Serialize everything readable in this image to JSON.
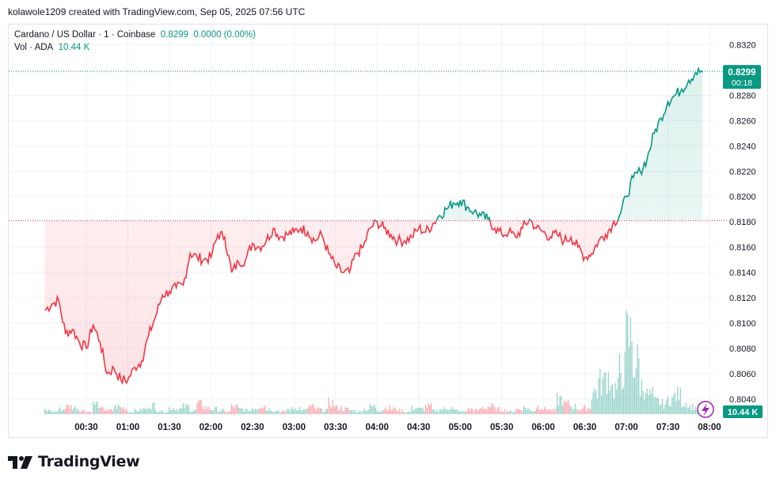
{
  "header": {
    "attribution": "kolawole1209 created with TradingView.com, Sep 05, 2025 07:56 UTC"
  },
  "legend": {
    "symbol": "Cardano / US Dollar · 1 · Coinbase",
    "last": "0.8299",
    "change": "0.0000 (0.00%)",
    "vol_label": "Vol · ADA",
    "vol_value": "10.44 K"
  },
  "badges": {
    "price": "0.8299",
    "countdown": "00:18",
    "volume": "10.44 K"
  },
  "brand": {
    "name": "TradingView"
  },
  "colors": {
    "up": "#089981",
    "down": "#f23645",
    "grid": "#f0f3fa",
    "text": "#131722"
  },
  "chart_data": {
    "type": "area",
    "title": "Cardano / US Dollar · 1 · Coinbase",
    "xlabel": "",
    "ylabel": "",
    "x_range": [
      "00:04",
      "08:04"
    ],
    "ylim": [
      0.8028,
      0.8336
    ],
    "y_ticks": [
      "0.8320",
      "0.8300",
      "0.8280",
      "0.8260",
      "0.8240",
      "0.8220",
      "0.8200",
      "0.8180",
      "0.8160",
      "0.8140",
      "0.8120",
      "0.8100",
      "0.8080",
      "0.8060",
      "0.8040"
    ],
    "x_ticks": [
      "00:30",
      "01:00",
      "01:30",
      "02:00",
      "02:30",
      "03:00",
      "03:30",
      "04:00",
      "04:30",
      "05:00",
      "05:30",
      "06:00",
      "06:30",
      "07:00",
      "07:30",
      "08:00"
    ],
    "baseline": 0.8181,
    "last_price": 0.8299,
    "series": [
      {
        "values_by_time": [
          [
            "00:00",
            0.811
          ],
          [
            "00:05",
            0.8115
          ],
          [
            "00:10",
            0.8118
          ],
          [
            "00:15",
            0.8092
          ],
          [
            "00:20",
            0.8095
          ],
          [
            "00:25",
            0.8085
          ],
          [
            "00:30",
            0.808
          ],
          [
            "00:35",
            0.8099
          ],
          [
            "00:40",
            0.8085
          ],
          [
            "00:45",
            0.806
          ],
          [
            "00:50",
            0.8064
          ],
          [
            "00:55",
            0.8055
          ],
          [
            "01:00",
            0.8055
          ],
          [
            "01:05",
            0.8065
          ],
          [
            "01:10",
            0.807
          ],
          [
            "01:15",
            0.809
          ],
          [
            "01:20",
            0.8105
          ],
          [
            "01:25",
            0.8122
          ],
          [
            "01:30",
            0.8125
          ],
          [
            "01:35",
            0.8128
          ],
          [
            "01:40",
            0.813
          ],
          [
            "01:45",
            0.8155
          ],
          [
            "01:50",
            0.8152
          ],
          [
            "01:55",
            0.815
          ],
          [
            "02:00",
            0.8152
          ],
          [
            "02:05",
            0.817
          ],
          [
            "02:10",
            0.8168
          ],
          [
            "02:15",
            0.814
          ],
          [
            "02:20",
            0.8148
          ],
          [
            "02:25",
            0.815
          ],
          [
            "02:30",
            0.8163
          ],
          [
            "02:35",
            0.816
          ],
          [
            "02:40",
            0.8165
          ],
          [
            "02:45",
            0.8175
          ],
          [
            "02:50",
            0.8168
          ],
          [
            "02:55",
            0.817
          ],
          [
            "03:00",
            0.8172
          ],
          [
            "03:05",
            0.8175
          ],
          [
            "03:10",
            0.8172
          ],
          [
            "03:15",
            0.8165
          ],
          [
            "03:20",
            0.817
          ],
          [
            "03:25",
            0.8155
          ],
          [
            "03:30",
            0.8145
          ],
          [
            "03:35",
            0.814
          ],
          [
            "03:40",
            0.814
          ],
          [
            "03:45",
            0.8155
          ],
          [
            "03:50",
            0.816
          ],
          [
            "03:55",
            0.8175
          ],
          [
            "04:00",
            0.818
          ],
          [
            "04:05",
            0.8175
          ],
          [
            "04:10",
            0.817
          ],
          [
            "04:15",
            0.8165
          ],
          [
            "04:20",
            0.8165
          ],
          [
            "04:25",
            0.8168
          ],
          [
            "04:30",
            0.8175
          ],
          [
            "04:35",
            0.8172
          ],
          [
            "04:40",
            0.8178
          ],
          [
            "04:45",
            0.8185
          ],
          [
            "04:50",
            0.819
          ],
          [
            "04:55",
            0.8195
          ],
          [
            "05:00",
            0.8197
          ],
          [
            "05:05",
            0.8192
          ],
          [
            "05:10",
            0.8188
          ],
          [
            "05:15",
            0.8185
          ],
          [
            "05:20",
            0.8182
          ],
          [
            "05:25",
            0.8175
          ],
          [
            "05:30",
            0.817
          ],
          [
            "05:35",
            0.8172
          ],
          [
            "05:40",
            0.8168
          ],
          [
            "05:45",
            0.8175
          ],
          [
            "05:50",
            0.8182
          ],
          [
            "05:55",
            0.8175
          ],
          [
            "06:00",
            0.8172
          ],
          [
            "06:05",
            0.8168
          ],
          [
            "06:10",
            0.817
          ],
          [
            "06:15",
            0.8165
          ],
          [
            "06:20",
            0.8168
          ],
          [
            "06:25",
            0.816
          ],
          [
            "06:30",
            0.8152
          ],
          [
            "06:35",
            0.8155
          ],
          [
            "06:40",
            0.8165
          ],
          [
            "06:45",
            0.817
          ],
          [
            "06:50",
            0.8178
          ],
          [
            "06:55",
            0.8185
          ],
          [
            "07:00",
            0.82
          ],
          [
            "07:05",
            0.8215
          ],
          [
            "07:10",
            0.822
          ],
          [
            "07:15",
            0.823
          ],
          [
            "07:20",
            0.825
          ],
          [
            "07:25",
            0.8262
          ],
          [
            "07:30",
            0.8275
          ],
          [
            "07:35",
            0.828
          ],
          [
            "07:40",
            0.8285
          ],
          [
            "07:45",
            0.8292
          ],
          [
            "07:50",
            0.8298
          ],
          [
            "07:55",
            0.8299
          ]
        ]
      }
    ],
    "volume_series": {
      "name": "Vol · ADA",
      "approx_max": 80000,
      "note_values_k": [
        3,
        2,
        4,
        6,
        5,
        3,
        2,
        8,
        4,
        3,
        6,
        5,
        2,
        3,
        4,
        7,
        3,
        2,
        5,
        4,
        6,
        3,
        8,
        5,
        4,
        3,
        2,
        6,
        4,
        3,
        5,
        7,
        4,
        3,
        2,
        4,
        5,
        3,
        6,
        4,
        3,
        9,
        5,
        4,
        3,
        2,
        4,
        6,
        3,
        5,
        4,
        3,
        2,
        5,
        4,
        6,
        3,
        4,
        5,
        3,
        2,
        4,
        3,
        5,
        6,
        4,
        3,
        2,
        4,
        5,
        3,
        6,
        4,
        3,
        12,
        8,
        6,
        4,
        5,
        18,
        25,
        30,
        20,
        35,
        60,
        40,
        22,
        15,
        10,
        8,
        12,
        15,
        9,
        6,
        5,
        4
      ]
    }
  }
}
